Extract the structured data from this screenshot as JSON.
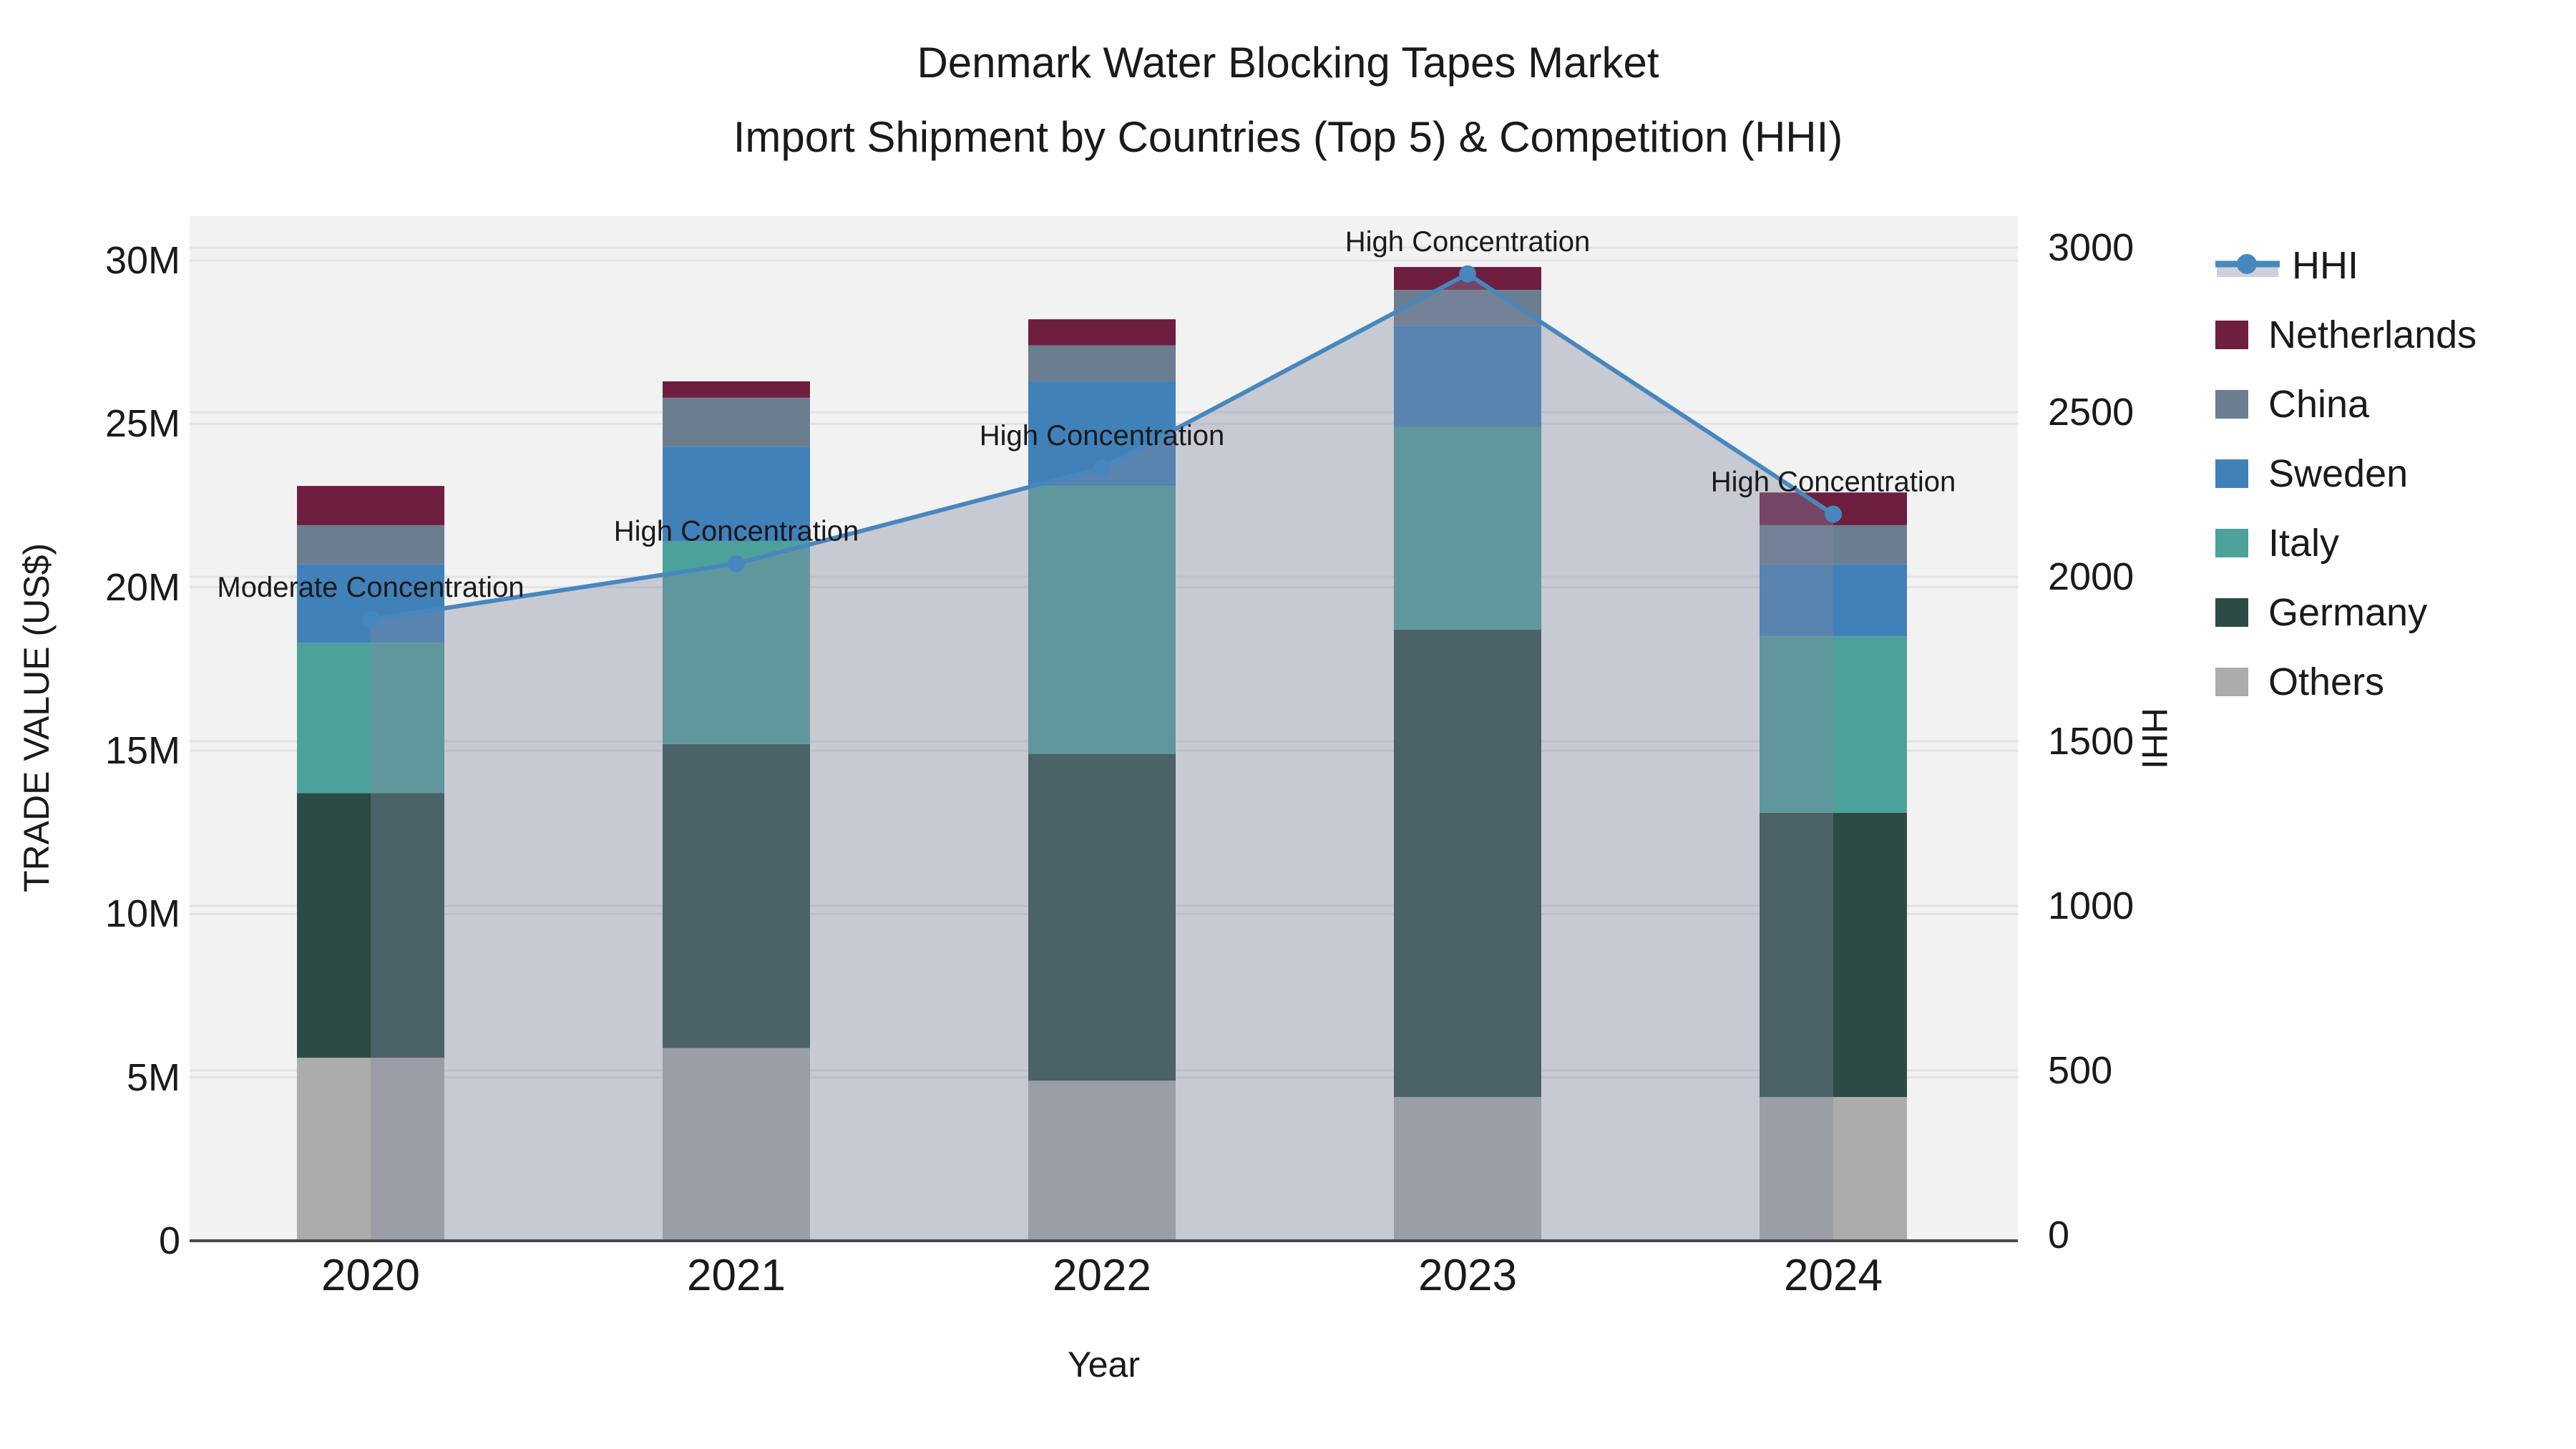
{
  "title": {
    "line1": "Denmark Water Blocking Tapes Market",
    "line2": "Import Shipment by Countries (Top 5) & Competition (HHI)"
  },
  "chart_data": {
    "type": "bar+line",
    "subtype": "stacked-bars-with-secondary-axis-line-and-area-fill",
    "categories": [
      "2020",
      "2021",
      "2022",
      "2023",
      "2024"
    ],
    "series": [
      {
        "name": "Others",
        "color": "#acacaa",
        "values": [
          5.6,
          5.9,
          4.9,
          4.4,
          4.4
        ]
      },
      {
        "name": "Germany",
        "color": "#2b4b44",
        "values": [
          8.1,
          9.3,
          10.0,
          14.3,
          8.7
        ]
      },
      {
        "name": "Italy",
        "color": "#4da19b",
        "values": [
          4.6,
          6.2,
          8.2,
          6.2,
          5.4
        ]
      },
      {
        "name": "Sweden",
        "color": "#4181ba",
        "values": [
          2.4,
          2.9,
          3.2,
          3.1,
          2.2
        ]
      },
      {
        "name": "China",
        "color": "#6b7e90",
        "values": [
          1.2,
          1.5,
          1.1,
          1.1,
          1.2
        ]
      },
      {
        "name": "Netherlands",
        "color": "#6e1e3f",
        "values": [
          1.2,
          0.5,
          0.8,
          0.7,
          1.0
        ]
      }
    ],
    "stack_totals_millions_usd": [
      23.1,
      26.3,
      28.2,
      29.8,
      22.9
    ],
    "hhi": {
      "name": "HHI",
      "color": "#4787bf",
      "area_fill_color": "rgba(130,138,160,0.38)",
      "values": [
        1870,
        2040,
        2330,
        2920,
        2190
      ]
    },
    "annotations": [
      {
        "category": "2020",
        "text": "Moderate Concentration"
      },
      {
        "category": "2021",
        "text": "High Concentration"
      },
      {
        "category": "2022",
        "text": "High Concentration"
      },
      {
        "category": "2023",
        "text": "High Concentration"
      },
      {
        "category": "2024",
        "text": "High Concentration"
      }
    ],
    "axes": {
      "left": {
        "title": "TRADE VALUE (US$)",
        "ticks": [
          "0",
          "5M",
          "10M",
          "15M",
          "20M",
          "25M",
          "30M"
        ],
        "tick_values": [
          0,
          5,
          10,
          15,
          20,
          25,
          30
        ],
        "range_millions": [
          0,
          31.4
        ]
      },
      "right": {
        "title": "HHI",
        "ticks": [
          "0",
          "500",
          "1000",
          "1500",
          "2000",
          "2500",
          "3000"
        ],
        "tick_values": [
          0,
          500,
          1000,
          1500,
          2000,
          2500,
          3000
        ],
        "range": [
          0,
          3100
        ]
      },
      "x": {
        "title": "Year"
      }
    },
    "legend": {
      "position": "right",
      "entries": [
        "HHI",
        "Netherlands",
        "China",
        "Sweden",
        "Italy",
        "Germany",
        "Others"
      ],
      "hhi_band_color": "#ccd2da"
    },
    "style": {
      "plot_bg": "#f2f2f2",
      "grid": "#e3e3e3",
      "axis_line": "#45484d",
      "text": "#1a1a1a"
    },
    "grid_on": true
  }
}
